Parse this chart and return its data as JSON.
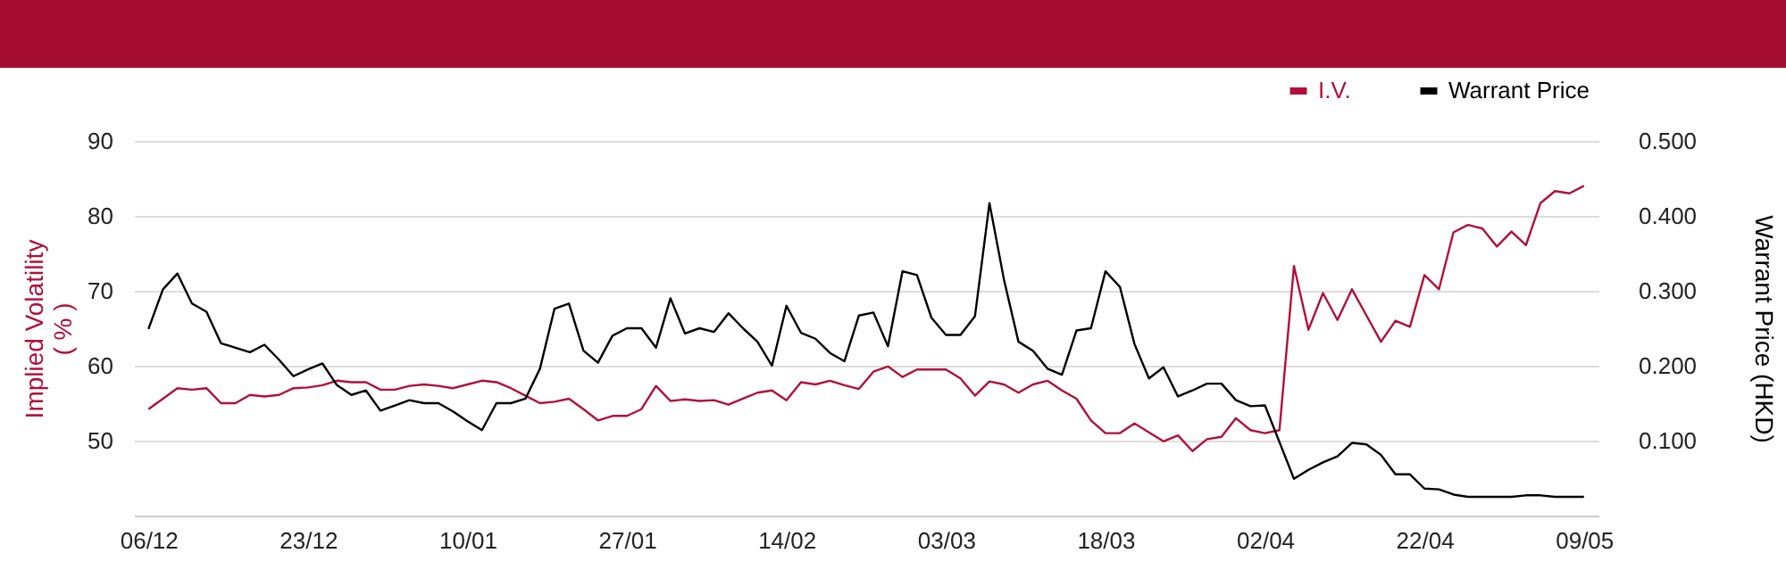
{
  "chart_data": {
    "type": "line",
    "categories": [
      "06/12",
      null,
      null,
      null,
      null,
      null,
      null,
      null,
      null,
      null,
      null,
      "23/12",
      null,
      null,
      null,
      null,
      null,
      null,
      null,
      null,
      null,
      null,
      "10/01",
      null,
      null,
      null,
      null,
      null,
      null,
      null,
      null,
      null,
      null,
      "27/01",
      null,
      null,
      null,
      null,
      null,
      null,
      null,
      null,
      null,
      null,
      "14/02",
      null,
      null,
      null,
      null,
      null,
      null,
      null,
      null,
      null,
      null,
      "03/03",
      null,
      null,
      null,
      null,
      null,
      null,
      null,
      null,
      null,
      null,
      "18/03",
      null,
      null,
      null,
      null,
      null,
      null,
      null,
      null,
      null,
      null,
      "02/04",
      null,
      null,
      null,
      null,
      null,
      null,
      null,
      null,
      null,
      null,
      "22/04",
      null,
      null,
      null,
      null,
      null,
      null,
      null,
      null,
      null,
      null,
      "09/05"
    ],
    "series": [
      {
        "name": "I.V.",
        "color": "#b0103a",
        "values": [
          54.2,
          55.6,
          57.0,
          56.8,
          57.0,
          55.0,
          55.0,
          56.1,
          55.9,
          56.1,
          57.0,
          57.1,
          57.4,
          58.0,
          57.8,
          57.8,
          56.8,
          56.8,
          57.3,
          57.5,
          57.3,
          57.0,
          57.5,
          58.0,
          57.8,
          57.0,
          56.0,
          55.0,
          55.2,
          55.6,
          54.2,
          52.7,
          53.3,
          53.3,
          54.2,
          57.3,
          55.3,
          55.5,
          55.3,
          55.4,
          54.8,
          55.6,
          56.4,
          56.7,
          55.4,
          57.8,
          57.5,
          58.0,
          57.4,
          56.9,
          59.2,
          59.9,
          58.5,
          59.5,
          59.5,
          59.5,
          58.3,
          56.0,
          57.9,
          57.5,
          56.4,
          57.5,
          58.0,
          56.7,
          55.6,
          52.7,
          51.0,
          51.0,
          52.3,
          51.1,
          49.9,
          50.7,
          48.6,
          50.2,
          50.5,
          53.0,
          51.4,
          51.0,
          51.4,
          73.3,
          64.8,
          69.7,
          66.1,
          70.2,
          66.7,
          63.2,
          66.0,
          65.2,
          72.1,
          70.2,
          77.8,
          78.8,
          78.3,
          75.9,
          77.9,
          76.1,
          81.7,
          83.3,
          83.0,
          84.0
        ]
      },
      {
        "name": "Warrant Price",
        "color": "#000000",
        "axis": "y2",
        "values": [
          0.249,
          0.302,
          0.323,
          0.283,
          0.272,
          0.23,
          0.224,
          0.218,
          0.228,
          0.208,
          0.186,
          0.195,
          0.203,
          0.174,
          0.161,
          0.167,
          0.14,
          0.147,
          0.154,
          0.15,
          0.15,
          0.139,
          0.126,
          0.114,
          0.15,
          0.15,
          0.156,
          0.196,
          0.276,
          0.283,
          0.22,
          0.204,
          0.24,
          0.25,
          0.25,
          0.224,
          0.29,
          0.243,
          0.25,
          0.245,
          0.27,
          0.25,
          0.232,
          0.2,
          0.28,
          0.244,
          0.236,
          0.217,
          0.206,
          0.267,
          0.271,
          0.226,
          0.326,
          0.321,
          0.264,
          0.241,
          0.241,
          0.266,
          0.417,
          0.315,
          0.232,
          0.22,
          0.196,
          0.188,
          0.247,
          0.25,
          0.326,
          0.305,
          0.229,
          0.183,
          0.198,
          0.159,
          0.167,
          0.176,
          0.176,
          0.154,
          0.146,
          0.147,
          0.098,
          0.049,
          0.061,
          0.071,
          0.079,
          0.097,
          0.095,
          0.081,
          0.055,
          0.055,
          0.036,
          0.035,
          0.028,
          0.025,
          0.025,
          0.025,
          0.025,
          0.027,
          0.027,
          0.025,
          0.025,
          0.025
        ]
      }
    ],
    "ylabel": "Implied Volatility ( % )",
    "y2label": "Warrant Price (HKD)",
    "ylim": [
      40,
      90
    ],
    "yticks": [
      50,
      60,
      70,
      80,
      90
    ],
    "y2lim": [
      0,
      0.5
    ],
    "y2ticks": [
      {
        "value": 0.1,
        "label": "0.100"
      },
      {
        "value": 0.2,
        "label": "0.200"
      },
      {
        "value": 0.3,
        "label": "0.300"
      },
      {
        "value": 0.4,
        "label": "0.400"
      },
      {
        "value": 0.5,
        "label": "0.500"
      }
    ],
    "grid": "y",
    "legend": "top right"
  }
}
